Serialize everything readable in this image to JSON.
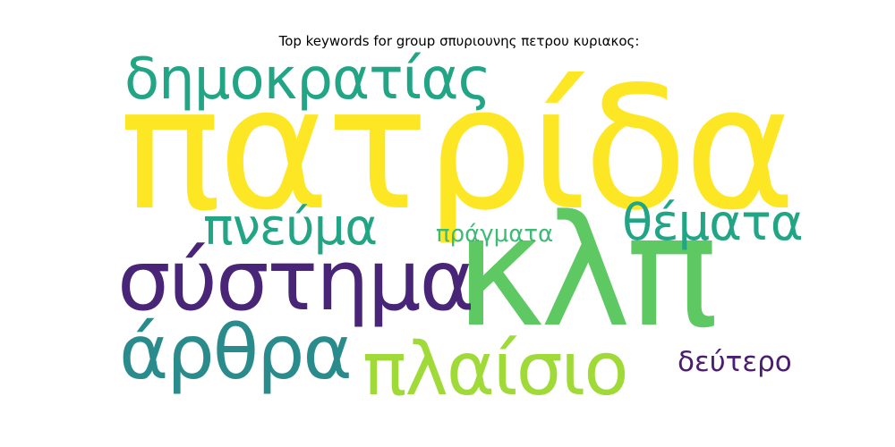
{
  "title": "Top keywords for group σπυριουνης πετρου κυριακος:",
  "words": [
    {
      "text": "πατρίδα",
      "color": "#fde725"
    },
    {
      "text": "κλπ",
      "color": "#5ec962"
    },
    {
      "text": "δημοκρατίας",
      "color": "#21a585"
    },
    {
      "text": "σύστημα",
      "color": "#482576"
    },
    {
      "text": "πνεύμα",
      "color": "#21a585"
    },
    {
      "text": "θέματα",
      "color": "#21a585"
    },
    {
      "text": "πράγματα",
      "color": "#3bbb75"
    },
    {
      "text": "άρθρα",
      "color": "#2a8b8c"
    },
    {
      "text": "πλαίσιο",
      "color": "#a0da39"
    },
    {
      "text": "δεύτερο",
      "color": "#4b1d6f"
    }
  ]
}
